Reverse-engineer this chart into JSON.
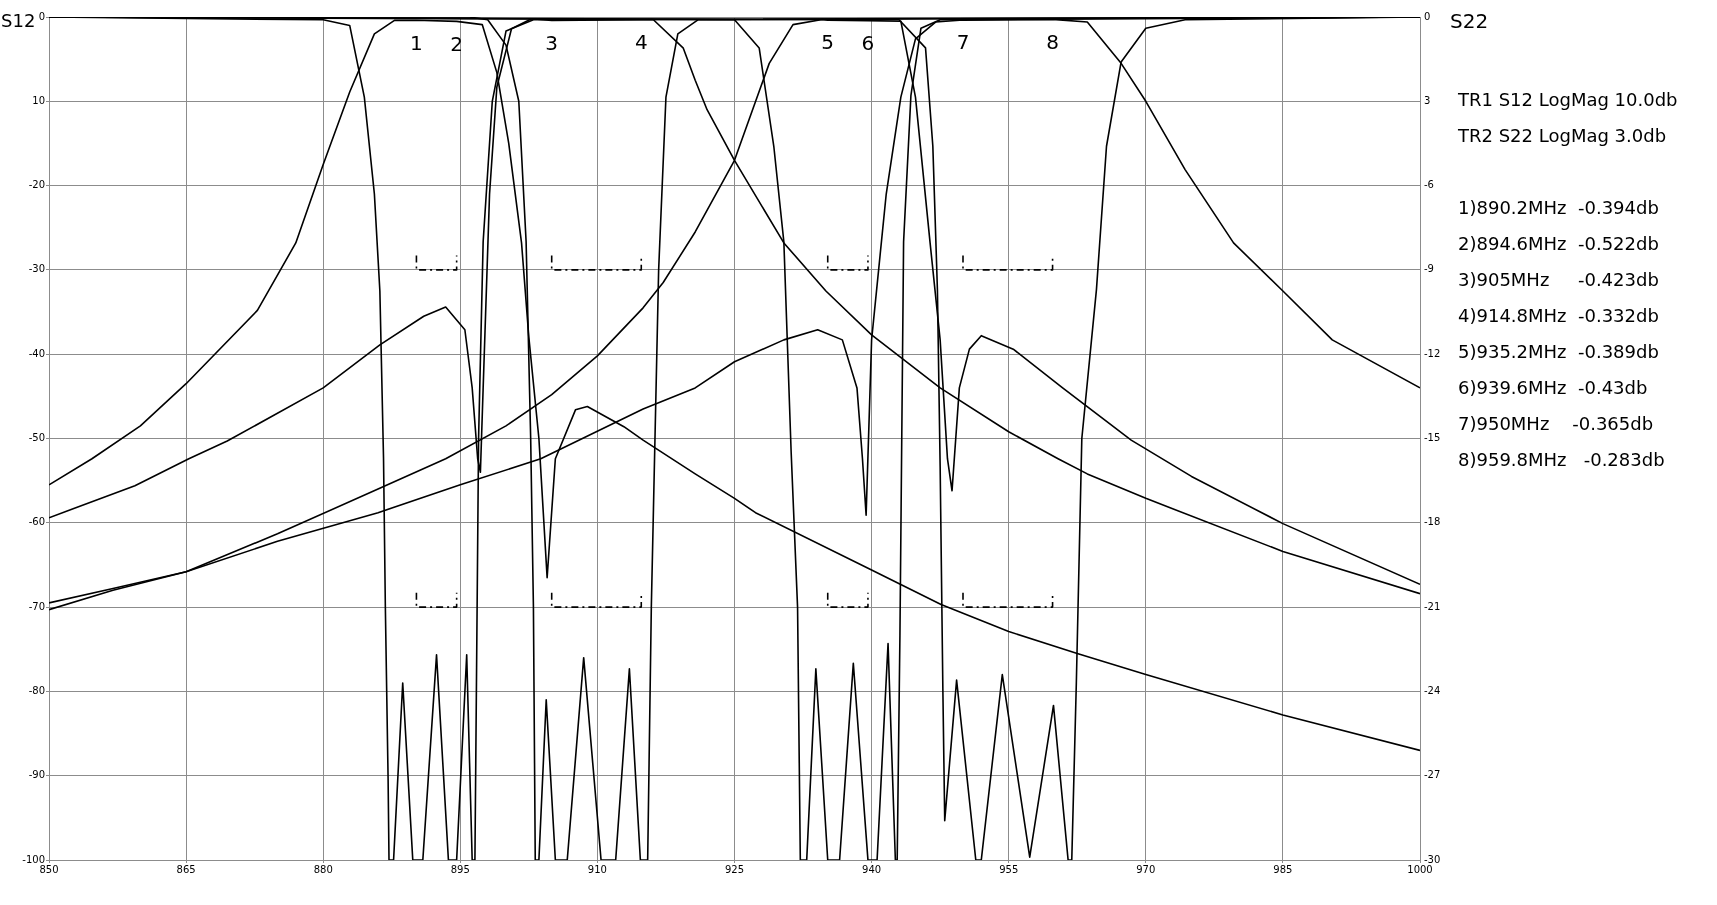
{
  "chart_data": {
    "type": "line",
    "ylabel": "S12",
    "y2label": "S22",
    "xlim": [
      850,
      1000
    ],
    "xticks": [
      850,
      865,
      880,
      895,
      910,
      925,
      940,
      955,
      970,
      985,
      1000
    ],
    "ylim": [
      -100,
      0
    ],
    "yticks": [
      -100,
      -90,
      -80,
      -70,
      -60,
      -50,
      -40,
      -30,
      -20,
      {
        "value": -10,
        "label": "10"
      },
      0
    ],
    "y2lim": [
      -30,
      0
    ],
    "y2ticks": [
      -30,
      -27,
      -24,
      -21,
      -18,
      -15,
      -12,
      -9,
      -6,
      {
        "value": -3,
        "label": "3"
      },
      0
    ],
    "grid": true,
    "legend": false,
    "line_style": "solid",
    "annotations": [
      {
        "text": "1",
        "x": 890.2,
        "y": -0.394
      },
      {
        "text": "2",
        "x": 894.6,
        "y": -0.522
      },
      {
        "text": "3",
        "x": 905,
        "y": -0.423
      },
      {
        "text": "4",
        "x": 914.8,
        "y": -0.332
      },
      {
        "text": "5",
        "x": 935.2,
        "y": -0.389
      },
      {
        "text": "6",
        "x": 939.6,
        "y": -0.43
      },
      {
        "text": "7",
        "x": 950,
        "y": -0.365
      },
      {
        "text": "8",
        "x": 959.8,
        "y": -0.283
      },
      "TR1 S12 LogMag 10.0db",
      "TR2 S22 LogMag 3.0db",
      "1)890.2MHz  -0.394db",
      "2)894.6MHz  -0.522db",
      "3)905MHz     -0.423db",
      "4)914.8MHz  -0.332db",
      "5)935.2MHz  -0.389db",
      "6)939.6MHz  -0.43db",
      "7)950MHz    -0.365db",
      "8)959.8MHz   -0.283db"
    ],
    "series": [
      {
        "color": "#000000",
        "x": [
          850,
          854.7,
          860,
          865,
          872.8,
          877,
          880,
          882.9,
          885.6,
          887.8,
          890.2,
          894.6,
          897.4,
          899,
          900.3,
          901.7,
          902.5,
          903.6,
          904.5,
          905.4,
          907.6,
          908.9,
          912.9,
          915,
          920.7,
          925,
          927.3,
          940,
          947.6,
          955,
          962.5,
          970,
          985,
          1000
        ],
        "values": [
          -55.5,
          -52.4,
          -48.5,
          -43.5,
          -34.8,
          -26.8,
          -17.5,
          -8.9,
          -2,
          -0.4,
          -0.394,
          -0.522,
          -0.9,
          -6.6,
          -15,
          -26.8,
          -38,
          -50,
          -66.5,
          -52.4,
          -46.6,
          -46.2,
          -48.6,
          -50.2,
          -54.2,
          -57.1,
          -58.8,
          -65.6,
          -69.7,
          -72.9,
          -75.5,
          -78,
          -82.8,
          -87
        ]
      },
      {
        "color": "#000000",
        "x": [
          850,
          859.4,
          865.3,
          869.5,
          880,
          886.2,
          891,
          893.4,
          895.5,
          896.3,
          896.9,
          897.2,
          897.5,
          898.2,
          899,
          900.6,
          902.8,
          905,
          914.8,
          916.1,
          919.4,
          920.7,
          922,
          925,
          930.4,
          935,
          940,
          947.5,
          955,
          960.4,
          963.6,
          970,
          985,
          1000
        ],
        "values": [
          -59.4,
          -55.6,
          -52.4,
          -50.3,
          -44,
          -38.9,
          -35.5,
          -34.4,
          -37.1,
          -44,
          -52.4,
          -54,
          -44,
          -21,
          -8.3,
          -1.4,
          -0.2,
          -0.423,
          -0.332,
          -0.3,
          -3.7,
          -7.5,
          -11,
          -17,
          -26.8,
          -32.5,
          -37.7,
          -44,
          -49.2,
          -52.4,
          -54.2,
          -57.1,
          -63.4,
          -68.4
        ]
      },
      {
        "color": "#000000",
        "x": [
          850,
          857,
          865,
          875,
          886,
          893.4,
          900,
          905,
          910,
          915,
          917.2,
          920.7,
          925,
          928.8,
          931.4,
          934.6,
          935.2,
          939.6,
          943.2,
          944.8,
          946.4,
          947.5,
          948.3,
          948.8,
          949.6,
          950.7,
          952,
          955.5,
          960.9,
          968.4,
          975,
          985,
          1000
        ],
        "values": [
          -70.3,
          -68,
          -65.8,
          -61.3,
          -56,
          -52.4,
          -48.5,
          -44.8,
          -40.2,
          -34.5,
          -31.5,
          -25.5,
          -17,
          -5.5,
          -0.9,
          -0.3,
          -0.389,
          -0.43,
          -0.5,
          -9.5,
          -26.8,
          -38.3,
          -52.4,
          -56.2,
          -44,
          -39.4,
          -37.8,
          -39.4,
          -44,
          -50.2,
          -54.5,
          -60.1,
          -67.3
        ]
      },
      {
        "color": "#000000",
        "x": [
          850,
          857,
          865,
          875,
          886,
          895,
          903.8,
          915,
          920.7,
          925,
          930.4,
          934.1,
          936.8,
          938.4,
          939,
          939.4,
          940,
          941.6,
          943.2,
          944.8,
          947,
          950,
          959.8,
          963.6,
          967.3,
          970,
          974.3,
          979.6,
          985,
          990.4,
          1000
        ],
        "values": [
          -69.5,
          -67.8,
          -65.8,
          -62.2,
          -58.8,
          -55.5,
          -52.4,
          -46.5,
          -44,
          -40.9,
          -38.3,
          -37.1,
          -38.3,
          -44,
          -52.4,
          -59.1,
          -38.3,
          -21,
          -9.5,
          -2.6,
          -0.6,
          -0.365,
          -0.283,
          -0.6,
          -5.5,
          -10,
          -18.1,
          -26.8,
          -32.5,
          -38.3,
          -44
        ]
      },
      {
        "color": "#000000",
        "axis": "y2",
        "x": [
          850,
          880,
          882.9,
          884.5,
          885.6,
          886.2,
          886.6,
          886.8,
          887.1,
          887.2,
          887.7,
          888.7,
          889.8,
          890.9,
          892.4,
          893.7,
          894.6,
          895.7,
          896.3,
          896.6,
          897,
          897.5,
          898.5,
          900,
          903,
          1000
        ],
        "values": [
          0,
          -0.1,
          -0.3,
          -2.85,
          -6.3,
          -9.75,
          -15.7,
          -21,
          -27.1,
          -30,
          -30,
          -23.7,
          -30,
          -30,
          -22.7,
          -30,
          -30,
          -22.7,
          -30,
          -30,
          -15,
          -8,
          -3,
          -0.5,
          -0.1,
          0
        ]
      },
      {
        "color": "#000000",
        "axis": "y2",
        "x": [
          850,
          896,
          898,
          900,
          901.4,
          902.2,
          902.7,
          903,
          903.2,
          903.6,
          904.4,
          905.4,
          906.7,
          908.5,
          910.4,
          912,
          913.5,
          914.7,
          915.5,
          915.9,
          916.7,
          917.5,
          918.8,
          921,
          1000
        ],
        "values": [
          0,
          0,
          -0.1,
          -1,
          -3,
          -8,
          -15,
          -21,
          -30,
          -30,
          -24.3,
          -30,
          -30,
          -22.8,
          -30,
          -30,
          -23.2,
          -30,
          -30,
          -21,
          -9,
          -2.85,
          -0.6,
          -0.1,
          0
        ]
      },
      {
        "color": "#000000",
        "axis": "y2",
        "x": [
          850,
          925,
          927.7,
          929.3,
          930.4,
          931.2,
          931.9,
          932.2,
          932.9,
          933.9,
          935.2,
          936.5,
          938,
          939.6,
          940.6,
          941.8,
          942.6,
          942.8,
          943.1,
          943.5,
          944.3,
          945.4,
          947.5,
          1000
        ],
        "values": [
          0,
          -0.1,
          -1.1,
          -4.6,
          -8,
          -15.5,
          -21,
          -30,
          -30,
          -23.2,
          -30,
          -30,
          -23,
          -30,
          -30,
          -22.3,
          -30,
          -30,
          -22,
          -8,
          -2.8,
          -0.4,
          -0.1,
          0
        ]
      },
      {
        "color": "#000000",
        "axis": "y2",
        "x": [
          850,
          943,
          945.9,
          946.7,
          947.2,
          947.5,
          947.8,
          948,
          949.3,
          951.4,
          952,
          954.3,
          957.3,
          959.9,
          961.5,
          961.9,
          962.4,
          963,
          964.6,
          965.7,
          967.3,
          970,
          974.3,
          1000
        ],
        "values": [
          0,
          -0.1,
          -1.1,
          -4.6,
          -9.7,
          -16,
          -24,
          -28.6,
          -23.6,
          -30,
          -30,
          -23.4,
          -29.9,
          -24.5,
          -30,
          -30,
          -23.7,
          -15,
          -9.7,
          -4.6,
          -1.6,
          -0.4,
          -0.1,
          0
        ]
      },
      {
        "color": "#000000",
        "line_style": "dashed",
        "x": [
          890.2,
          890.2,
          894.6,
          894.6
        ],
        "values": [
          -28.3,
          -30,
          -30,
          -28.3
        ]
      },
      {
        "color": "#000000",
        "line_style": "dashed",
        "x": [
          905,
          905,
          914.8,
          914.8
        ],
        "values": [
          -28.3,
          -30,
          -30,
          -28.3
        ]
      },
      {
        "color": "#000000",
        "line_style": "dashed",
        "x": [
          935.2,
          935.2,
          939.6,
          939.6
        ],
        "values": [
          -28.3,
          -30,
          -30,
          -28.3
        ]
      },
      {
        "color": "#000000",
        "line_style": "dashed",
        "x": [
          950,
          950,
          959.8,
          959.8
        ],
        "values": [
          -28.3,
          -30,
          -30,
          -28.3
        ]
      },
      {
        "color": "#000000",
        "line_style": "dashed",
        "x": [
          890.2,
          890.2,
          894.6,
          894.6
        ],
        "values": [
          -68.3,
          -70,
          -70,
          -68.3
        ]
      },
      {
        "color": "#000000",
        "line_style": "dashed",
        "x": [
          905,
          905,
          914.8,
          914.8
        ],
        "values": [
          -68.3,
          -70,
          -70,
          -68.3
        ]
      },
      {
        "color": "#000000",
        "line_style": "dashed",
        "x": [
          935.2,
          935.2,
          939.6,
          939.6
        ],
        "values": [
          -68.3,
          -70,
          -70,
          -68.3
        ]
      },
      {
        "color": "#000000",
        "line_style": "dashed",
        "x": [
          950,
          950,
          959.8,
          959.8
        ],
        "values": [
          -68.3,
          -70,
          -70,
          -68.3
        ]
      }
    ]
  }
}
